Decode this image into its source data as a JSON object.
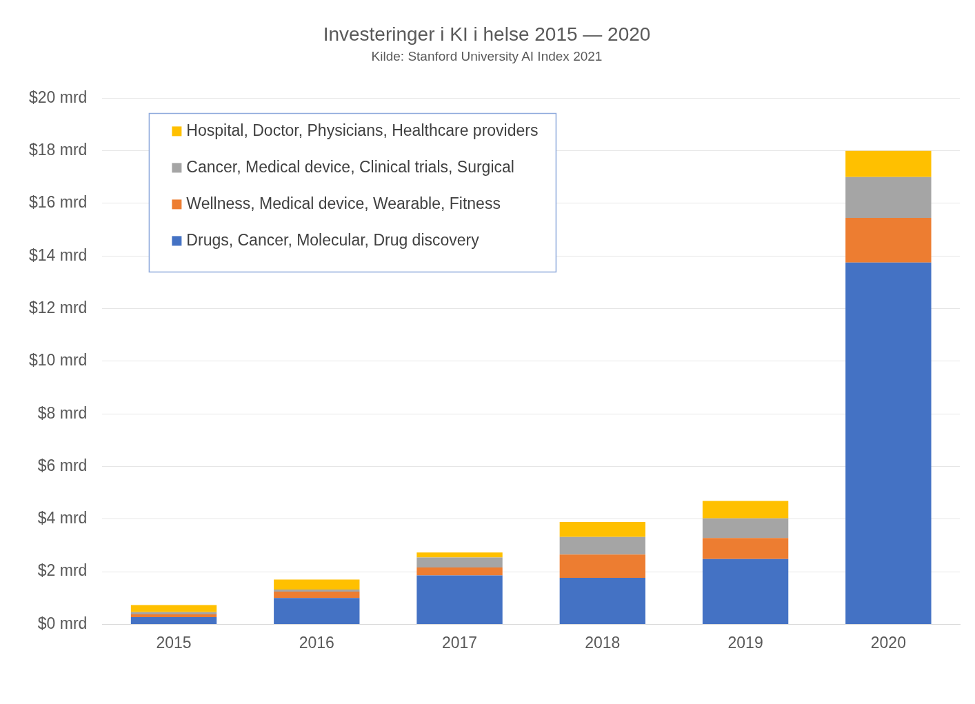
{
  "chart_data": {
    "type": "bar",
    "title": "Investeringer i KI i helse 2015 — 2020",
    "subtitle": "Kilde: Stanford University AI Index 2021",
    "categories": [
      "2015",
      "2016",
      "2017",
      "2018",
      "2019",
      "2020"
    ],
    "series": [
      {
        "name": "Drugs, Cancer, Molecular, Drug discovery",
        "color": "#4472c4",
        "values": [
          0.27,
          1.0,
          1.86,
          1.77,
          2.48,
          13.75
        ]
      },
      {
        "name": "Wellness, Medical device, Wearable, Fitness",
        "color": "#ed7d31",
        "values": [
          0.11,
          0.24,
          0.3,
          0.88,
          0.8,
          1.7
        ]
      },
      {
        "name": "Cancer, Medical device, Clinical trials, Surgical",
        "color": "#a5a5a5",
        "values": [
          0.08,
          0.08,
          0.38,
          0.67,
          0.75,
          1.55
        ]
      },
      {
        "name": "Hospital, Doctor, Physicians, Healthcare providers",
        "color": "#ffc000",
        "values": [
          0.27,
          0.38,
          0.19,
          0.57,
          0.66,
          1.0
        ]
      }
    ],
    "stacked": true,
    "ylim": [
      0,
      20
    ],
    "yticks": [
      {
        "value": 0,
        "label": "$0 mrd"
      },
      {
        "value": 2,
        "label": "$2 mrd"
      },
      {
        "value": 4,
        "label": "$4 mrd"
      },
      {
        "value": 6,
        "label": "$6 mrd"
      },
      {
        "value": 8,
        "label": "$8 mrd"
      },
      {
        "value": 10,
        "label": "$10 mrd"
      },
      {
        "value": 12,
        "label": "$12 mrd"
      },
      {
        "value": 14,
        "label": "$14 mrd"
      },
      {
        "value": 16,
        "label": "$16 mrd"
      },
      {
        "value": 18,
        "label": "$18 mrd"
      },
      {
        "value": 20,
        "label": "$20 mrd"
      }
    ],
    "grid": "y",
    "legend": "top left"
  }
}
